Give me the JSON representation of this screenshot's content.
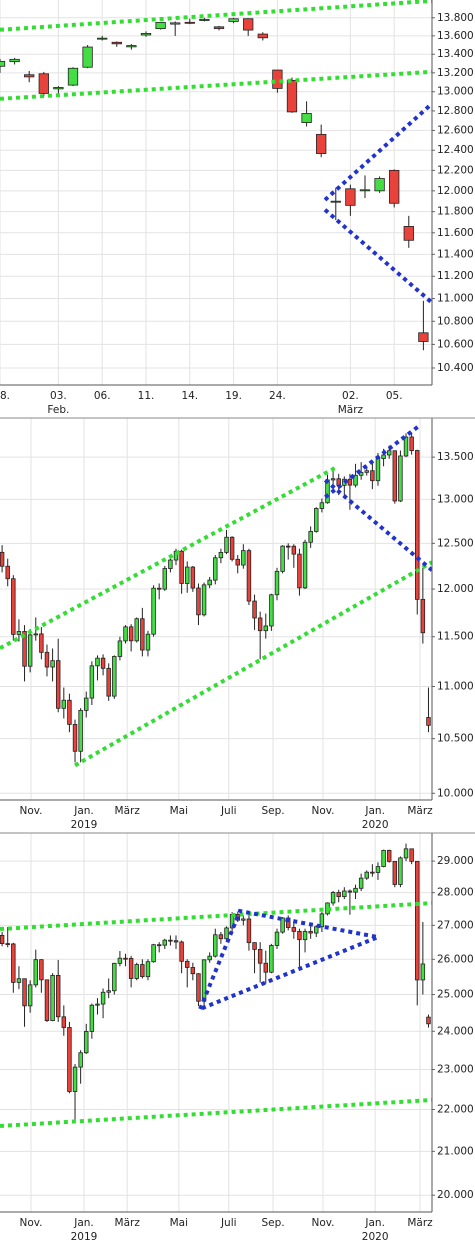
{
  "chart_data": [
    {
      "type": "candlestick",
      "log_scale": true,
      "grid": true,
      "up_color": "#44dd44",
      "down_color": "#e8423b",
      "xlim": [
        0,
        29.59
      ],
      "ylim": [
        10258,
        14000
      ],
      "yticks": [
        {
          "value": 10400,
          "label": "10.400"
        },
        {
          "value": 10600,
          "label": "10.600"
        },
        {
          "value": 10800,
          "label": "10.800"
        },
        {
          "value": 11000,
          "label": "11.000"
        },
        {
          "value": 11200,
          "label": "11.200"
        },
        {
          "value": 11400,
          "label": "11.400"
        },
        {
          "value": 11600,
          "label": "11.600"
        },
        {
          "value": 11800,
          "label": "11.800"
        },
        {
          "value": 12000,
          "label": "12.000"
        },
        {
          "value": 12200,
          "label": "12.200"
        },
        {
          "value": 12400,
          "label": "12.400"
        },
        {
          "value": 12600,
          "label": "12.600"
        },
        {
          "value": 12800,
          "label": "12.800"
        },
        {
          "value": 13000,
          "label": "13.000"
        },
        {
          "value": 13200,
          "label": "13.200"
        },
        {
          "value": 13400,
          "label": "13.400"
        },
        {
          "value": 13600,
          "label": "13.600"
        },
        {
          "value": 13800,
          "label": "13.800"
        }
      ],
      "xticks": [
        {
          "value": 0,
          "label": "8."
        },
        {
          "value": 4,
          "label": "03."
        },
        {
          "value": 7,
          "label": "06."
        },
        {
          "value": 10,
          "label": "11."
        },
        {
          "value": 13,
          "label": "14."
        },
        {
          "value": 16,
          "label": "19."
        },
        {
          "value": 19,
          "label": "24."
        },
        {
          "value": 24,
          "label": "02."
        },
        {
          "value": 27,
          "label": "05."
        }
      ],
      "xlabels2": [
        {
          "value": 4,
          "label": "Feb."
        },
        {
          "value": 24,
          "label": "März"
        }
      ],
      "open": [
        13270,
        13320,
        13180,
        13190,
        13030,
        13070,
        13260,
        13570,
        13530,
        13480,
        13610,
        13680,
        13730,
        13750,
        13770,
        13700,
        13760,
        13790,
        13620,
        13230,
        13120,
        12680,
        12560,
        11900,
        12020,
        12000,
        12000,
        12200,
        11660,
        10700
      ],
      "high": [
        13350,
        13360,
        13220,
        13210,
        13060,
        13260,
        13500,
        13600,
        13540,
        13510,
        13650,
        13750,
        13760,
        13790,
        13800,
        13710,
        13800,
        13795,
        13640,
        13230,
        13150,
        12900,
        12660,
        12030,
        12060,
        12150,
        12140,
        12210,
        11760,
        10980
      ],
      "low": [
        13200,
        13290,
        13100,
        12950,
        12980,
        13060,
        13250,
        13550,
        13480,
        13450,
        13590,
        13670,
        13600,
        13730,
        13760,
        13660,
        13740,
        13600,
        13550,
        12990,
        12780,
        12640,
        12330,
        11720,
        11760,
        11930,
        11980,
        11840,
        11460,
        10550
      ],
      "close": [
        13323,
        13345,
        13157,
        12982,
        13045,
        13249,
        13478,
        13575,
        13513,
        13494,
        13627,
        13749,
        13744,
        13744,
        13783,
        13681,
        13789,
        13664,
        13579,
        13035,
        12790,
        12774,
        12367,
        11890,
        11860,
        12010,
        12120,
        11880,
        11530,
        10625
      ],
      "lines": [
        {
          "color": "#33dd33",
          "x": [
            0,
            29.59
          ],
          "y": [
            13667,
            13990
          ]
        },
        {
          "color": "#33dd33",
          "x": [
            0,
            29.59
          ],
          "y": [
            12926,
            13211
          ]
        },
        {
          "color": "#2233cc",
          "x": [
            22.26,
            29.59
          ],
          "y": [
            11912,
            12876
          ]
        },
        {
          "color": "#2233cc",
          "x": [
            22.26,
            29.59
          ],
          "y": [
            11818,
            10963
          ]
        }
      ]
    },
    {
      "type": "candlestick",
      "log_scale": true,
      "grid": true,
      "up_color": "#44dd44",
      "down_color": "#e8423b",
      "xlim": [
        -0.374,
        76.63
      ],
      "ylim": [
        9940,
        13980
      ],
      "yticks": [
        {
          "value": 10000,
          "label": "10.000"
        },
        {
          "value": 10500,
          "label": "10.500"
        },
        {
          "value": 11000,
          "label": "11.000"
        },
        {
          "value": 11500,
          "label": "11.500"
        },
        {
          "value": 12000,
          "label": "12.000"
        },
        {
          "value": 12500,
          "label": "12.500"
        },
        {
          "value": 13000,
          "label": "13.000"
        },
        {
          "value": 13500,
          "label": "13.500"
        }
      ],
      "xticks": [
        {
          "value": 5.15,
          "label": "Nov."
        },
        {
          "value": 14.6,
          "label": "Jan."
        },
        {
          "value": 22.3,
          "label": "März"
        },
        {
          "value": 31.5,
          "label": "Mai"
        },
        {
          "value": 40.4,
          "label": "Juli"
        },
        {
          "value": 48.3,
          "label": "Sep."
        },
        {
          "value": 57.2,
          "label": "Nov."
        },
        {
          "value": 66.5,
          "label": "Jan."
        },
        {
          "value": 74.5,
          "label": "März"
        }
      ],
      "xlabels2": [
        {
          "value": 14.6,
          "label": "2019"
        },
        {
          "value": 66.5,
          "label": "2020"
        }
      ],
      "open": [
        12400,
        12247,
        12111,
        11524,
        11554,
        11201,
        11519,
        11529,
        11341,
        11193,
        11257,
        10788,
        10866,
        10634,
        10382,
        10768,
        10887,
        11205,
        11282,
        11180,
        10906,
        11299,
        11457,
        11602,
        11458,
        11686,
        11364,
        11526,
        12009,
        11999,
        12222,
        12315,
        12412,
        12060,
        12238,
        12011,
        11727,
        12045,
        12096,
        12340,
        12399,
        12568,
        12323,
        12260,
        12419,
        11872,
        11694,
        11562,
        11611,
        11939,
        12191,
        12469,
        12468,
        12380,
        12013,
        12512,
        12634,
        12895,
        12961,
        13228,
        13242,
        13164,
        13236,
        13167,
        13283,
        13318,
        13337,
        13219,
        13483,
        13526,
        13577,
        12982,
        13514,
        13745,
        13580,
        11890,
        10700
      ],
      "high": [
        12480,
        12330,
        12150,
        11680,
        11620,
        11580,
        11700,
        11600,
        11420,
        11380,
        11480,
        10990,
        10930,
        10680,
        10790,
        10950,
        11250,
        11310,
        11320,
        11230,
        11310,
        11500,
        11620,
        11630,
        11700,
        11800,
        11560,
        12040,
        12060,
        12250,
        12340,
        12440,
        12430,
        12300,
        12250,
        12060,
        12070,
        12130,
        12370,
        12440,
        12650,
        12580,
        12370,
        12490,
        12440,
        11940,
        11760,
        11740,
        11950,
        12230,
        12480,
        12500,
        12490,
        12440,
        12540,
        12690,
        12910,
        13010,
        13290,
        13370,
        13300,
        13270,
        13300,
        13420,
        13440,
        13380,
        13430,
        13550,
        13600,
        13640,
        13580,
        13580,
        13790,
        13800,
        13590,
        12230,
        10990
      ],
      "low": [
        12180,
        12030,
        11460,
        11450,
        11050,
        11140,
        11460,
        11270,
        11100,
        11050,
        10750,
        10690,
        10560,
        10280,
        10280,
        10700,
        10820,
        11060,
        11110,
        10860,
        10880,
        11260,
        11430,
        11350,
        11440,
        11300,
        11300,
        11500,
        11890,
        11980,
        12180,
        12260,
        11950,
        11960,
        11970,
        11620,
        11710,
        12010,
        12050,
        12280,
        12380,
        12300,
        12170,
        12220,
        11830,
        11570,
        11270,
        11480,
        11560,
        11880,
        12170,
        12320,
        12230,
        11930,
        12000,
        12450,
        12620,
        12850,
        12950,
        13160,
        13050,
        13010,
        12880,
        13140,
        13230,
        13280,
        13120,
        13160,
        13390,
        13480,
        12950,
        12970,
        13500,
        13530,
        11730,
        11430,
        10560
      ],
      "close": [
        12247,
        12111,
        11524,
        11554,
        11201,
        11519,
        11529,
        11341,
        11193,
        11257,
        10788,
        10866,
        10634,
        10382,
        10768,
        10887,
        11205,
        11282,
        11180,
        10906,
        11299,
        11457,
        11602,
        11458,
        11686,
        11364,
        11526,
        12009,
        11999,
        12222,
        12315,
        12412,
        12060,
        12238,
        12011,
        11727,
        12045,
        12096,
        12340,
        12399,
        12568,
        12323,
        12260,
        12419,
        11872,
        11694,
        11562,
        11611,
        11939,
        12191,
        12469,
        12468,
        12380,
        12013,
        12512,
        12634,
        12895,
        12961,
        13228,
        13242,
        13164,
        13236,
        13167,
        13283,
        13318,
        13337,
        13219,
        13483,
        13526,
        13577,
        12982,
        13514,
        13745,
        13579,
        11890,
        11541,
        10625
      ],
      "lines": [
        {
          "color": "#33dd33",
          "x": [
            -0.374,
            59.3
          ],
          "y": [
            11383,
            13368
          ]
        },
        {
          "color": "#33dd33",
          "x": [
            13.0,
            76.63
          ],
          "y": [
            10252,
            12292
          ]
        },
        {
          "color": "#2233cc",
          "x": [
            57.6,
            74.5
          ],
          "y": [
            13026,
            13891
          ]
        },
        {
          "color": "#2233cc",
          "x": [
            57.6,
            76.63
          ],
          "y": [
            13226,
            12204
          ]
        }
      ]
    },
    {
      "type": "candlestick",
      "log_scale": true,
      "grid": true,
      "up_color": "#44dd44",
      "down_color": "#e8423b",
      "xlim": [
        -0.374,
        76.63
      ],
      "ylim": [
        19630,
        29920
      ],
      "yticks": [
        {
          "value": 20000,
          "label": "20.000"
        },
        {
          "value": 21000,
          "label": "21.000"
        },
        {
          "value": 22000,
          "label": "22.000"
        },
        {
          "value": 23000,
          "label": "23.000"
        },
        {
          "value": 24000,
          "label": "24.000"
        },
        {
          "value": 25000,
          "label": "25.000"
        },
        {
          "value": 26000,
          "label": "26.000"
        },
        {
          "value": 27000,
          "label": "27.000"
        },
        {
          "value": 28000,
          "label": "28.000"
        },
        {
          "value": 29000,
          "label": "29.000"
        }
      ],
      "xticks": [
        {
          "value": 5.15,
          "label": "Nov."
        },
        {
          "value": 14.6,
          "label": "Jan."
        },
        {
          "value": 22.3,
          "label": "März"
        },
        {
          "value": 31.5,
          "label": "Mai"
        },
        {
          "value": 40.4,
          "label": "Juli"
        },
        {
          "value": 48.3,
          "label": "Sep."
        },
        {
          "value": 57.2,
          "label": "Nov."
        },
        {
          "value": 66.5,
          "label": "Jan."
        },
        {
          "value": 74.5,
          "label": "März"
        }
      ],
      "xlabels2": [
        {
          "value": 14.6,
          "label": "2019"
        },
        {
          "value": 66.5,
          "label": "2020"
        }
      ],
      "open": [
        26700,
        26458,
        26447,
        25340,
        25444,
        24688,
        25271,
        25989,
        25413,
        24286,
        25538,
        24389,
        24101,
        22445,
        23062,
        23433,
        23996,
        24706,
        24737,
        25064,
        25106,
        25883,
        26031,
        26026,
        25450,
        25849,
        25502,
        25929,
        26425,
        26412,
        26559,
        26543,
        26505,
        25942,
        25764,
        25586,
        24815,
        25984,
        26090,
        26719,
        26600,
        26922,
        27332,
        27154,
        27192,
        26485,
        26287,
        25886,
        25629,
        26403,
        26797,
        27220,
        26935,
        26820,
        26573,
        26817,
        26770,
        26958,
        27347,
        27681,
        28005,
        27876,
        28051,
        28015,
        28135,
        28455,
        28645,
        28635,
        28824,
        29348,
        28990,
        28256,
        29102,
        29398,
        28992,
        25409,
        24380
      ],
      "high": [
        26800,
        26950,
        26480,
        25800,
        25450,
        25400,
        26280,
        26000,
        25420,
        25600,
        25980,
        24700,
        24250,
        23140,
        23500,
        24200,
        24750,
        24900,
        25170,
        25450,
        25900,
        26240,
        26160,
        26100,
        25900,
        26000,
        26000,
        26450,
        26500,
        26600,
        26700,
        26700,
        26550,
        26000,
        25900,
        25600,
        26000,
        26200,
        26900,
        26800,
        26970,
        27400,
        27400,
        27300,
        27400,
        26500,
        26500,
        26250,
        26450,
        26900,
        27250,
        27300,
        27100,
        26900,
        26900,
        27050,
        27000,
        27400,
        27700,
        28050,
        28090,
        28170,
        28100,
        28250,
        28600,
        28700,
        28900,
        28960,
        29370,
        29370,
        29000,
        29150,
        29570,
        29400,
        29000,
        27100,
        24450
      ],
      "low": [
        26380,
        26350,
        25050,
        25150,
        24120,
        24500,
        25200,
        25050,
        24250,
        24270,
        24250,
        23880,
        22400,
        21710,
        22640,
        23400,
        23800,
        24450,
        24350,
        24900,
        25000,
        25800,
        25800,
        25200,
        25400,
        25450,
        25400,
        25900,
        26200,
        26300,
        26400,
        26300,
        25600,
        25200,
        25400,
        24680,
        24700,
        25900,
        26050,
        26450,
        26550,
        26800,
        27100,
        27000,
        26250,
        25600,
        25340,
        25300,
        25600,
        26300,
        26750,
        26850,
        26600,
        25740,
        26200,
        26600,
        26650,
        26800,
        27300,
        27600,
        27700,
        27800,
        27320,
        27800,
        28050,
        28400,
        28500,
        28400,
        28800,
        28950,
        28170,
        28170,
        29000,
        28900,
        24700,
        25000,
        24100
      ],
      "close": [
        26458,
        26447,
        25340,
        25444,
        24688,
        25271,
        25989,
        25413,
        24286,
        25538,
        24389,
        24101,
        22445,
        23062,
        23433,
        23996,
        24706,
        24737,
        25064,
        25106,
        25883,
        26031,
        26026,
        25450,
        25849,
        25502,
        25929,
        26425,
        26412,
        26559,
        26543,
        26505,
        25942,
        25764,
        25586,
        24815,
        25984,
        26090,
        26719,
        26600,
        26922,
        27332,
        27154,
        27192,
        26485,
        26287,
        25886,
        25629,
        26403,
        26797,
        27220,
        26935,
        26820,
        26573,
        26817,
        26770,
        26958,
        27347,
        27681,
        28005,
        27876,
        28051,
        28015,
        28135,
        28455,
        28645,
        28635,
        28824,
        29348,
        28990,
        28256,
        29102,
        29398,
        28992,
        25409,
        25865,
        24200
      ],
      "lines": [
        {
          "color": "#33dd33",
          "x": [
            -0.374,
            76.63
          ],
          "y": [
            26889,
            27677
          ]
        },
        {
          "color": "#33dd33",
          "x": [
            -0.374,
            76.63
          ],
          "y": [
            21600,
            22234
          ]
        },
        {
          "color": "#2233cc",
          "x": [
            35.3,
            42.4,
            67.0,
            35.3
          ],
          "y": [
            24601,
            27432,
            26649,
            24601
          ]
        }
      ]
    }
  ]
}
